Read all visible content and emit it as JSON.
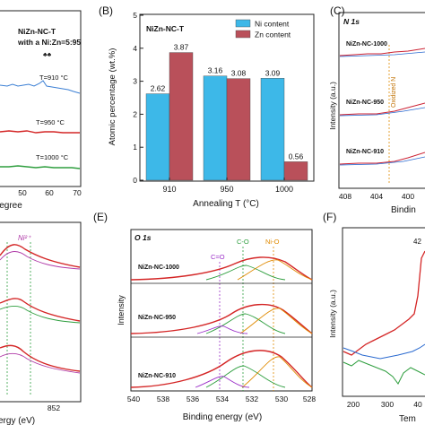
{
  "figure": {
    "panels": {
      "a": {
        "title": "NiZn-NC-T",
        "subtitle": "with a Ni:Zn=5:95",
        "xlabel_partial": "legree",
        "x_ticks": [
          "50",
          "60",
          "70"
        ],
        "marker": "♣♣",
        "traces": [
          {
            "label": "T=910 °C",
            "color": "#3b7fd4"
          },
          {
            "label": "T=950 °C",
            "color": "#d42626"
          },
          {
            "label": "T=1000 °C",
            "color": "#2e9e3e"
          }
        ]
      },
      "b": {
        "letter": "(B)",
        "inset": "NiZn-NC-T"
      },
      "c": {
        "letter": "(C)",
        "title": "N 1s",
        "ylabel": "Intensity (a.u.)",
        "xlabel_partial": "Bindin",
        "x_ticks": [
          "408",
          "404",
          "400"
        ],
        "peak_label": "Oxidized N",
        "samples": [
          "NiZn-NC-1000",
          "NiZn-NC-950",
          "NiZn-NC-910"
        ]
      },
      "d": {
        "peak_label": "Ni²⁺",
        "x_ticks": [
          "852"
        ],
        "xlabel_partial": "ergy (eV)"
      },
      "e": {
        "letter": "(E)",
        "title": "O 1s",
        "ylabel": "Intensity",
        "xlabel": "Binding energy (eV)",
        "x_ticks": [
          "540",
          "538",
          "536",
          "534",
          "532",
          "530",
          "528"
        ],
        "samples": [
          "NiZn-NC-1000",
          "NiZn-NC-950",
          "NiZn-NC-910"
        ],
        "peak_labels": [
          {
            "text": "C=O",
            "color": "#9b2fc8"
          },
          {
            "text": "C-O",
            "color": "#2e9e3e"
          },
          {
            "text": "Ni-O",
            "color": "#e08a00"
          }
        ]
      },
      "f": {
        "letter": "(F)",
        "ylabel": "Intensity (a.u.)",
        "xlabel_partial": "Tem",
        "x_ticks": [
          "200",
          "300",
          "40"
        ],
        "peak_label": "42"
      }
    }
  },
  "chart_data": {
    "type": "bar",
    "title": "",
    "xlabel": "Annealing T (°C)",
    "ylabel": "Atomic percentage (wt.%)",
    "categories": [
      "910",
      "950",
      "1000"
    ],
    "ylim": [
      0,
      5
    ],
    "yticks": [
      "0",
      "1",
      "2",
      "3",
      "4",
      "5"
    ],
    "legend_position": "top-right",
    "series": [
      {
        "name": "Ni content",
        "color": "#3db8e8",
        "values": [
          2.62,
          3.16,
          3.09
        ],
        "labels": [
          "2.62",
          "3.16",
          "3.09"
        ]
      },
      {
        "name": "Zn content",
        "color": "#b9505a",
        "values": [
          3.87,
          3.08,
          0.56
        ],
        "labels": [
          "3.87",
          "3.08",
          "0.56"
        ]
      }
    ]
  }
}
